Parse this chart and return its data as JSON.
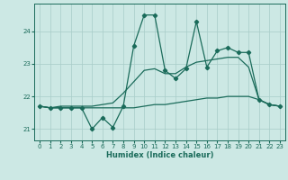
{
  "title": "",
  "xlabel": "Humidex (Indice chaleur)",
  "bg_color": "#cce8e4",
  "grid_color": "#a8ccc8",
  "line_color": "#1a6b5a",
  "xlim": [
    -0.5,
    23.5
  ],
  "ylim": [
    20.65,
    24.85
  ],
  "yticks": [
    21,
    22,
    23,
    24
  ],
  "xticks": [
    0,
    1,
    2,
    3,
    4,
    5,
    6,
    7,
    8,
    9,
    10,
    11,
    12,
    13,
    14,
    15,
    16,
    17,
    18,
    19,
    20,
    21,
    22,
    23
  ],
  "series1_x": [
    0,
    1,
    2,
    3,
    4,
    5,
    6,
    7,
    8,
    9,
    10,
    11,
    12,
    13,
    14,
    15,
    16,
    17,
    18,
    19,
    20,
    21,
    22,
    23
  ],
  "series1_y": [
    21.7,
    21.65,
    21.65,
    21.65,
    21.65,
    21.0,
    21.35,
    21.05,
    21.7,
    23.55,
    24.5,
    24.5,
    22.8,
    22.55,
    22.85,
    24.3,
    22.9,
    23.4,
    23.5,
    23.35,
    23.35,
    21.9,
    21.75,
    21.7
  ],
  "series2_x": [
    0,
    1,
    2,
    3,
    4,
    5,
    6,
    7,
    8,
    9,
    10,
    11,
    12,
    13,
    14,
    15,
    16,
    17,
    18,
    19,
    20,
    21,
    22,
    23
  ],
  "series2_y": [
    21.7,
    21.65,
    21.65,
    21.65,
    21.65,
    21.65,
    21.65,
    21.65,
    21.65,
    21.65,
    21.7,
    21.75,
    21.75,
    21.8,
    21.85,
    21.9,
    21.95,
    21.95,
    22.0,
    22.0,
    22.0,
    21.9,
    21.75,
    21.7
  ],
  "series3_x": [
    0,
    1,
    2,
    3,
    4,
    5,
    6,
    7,
    8,
    9,
    10,
    11,
    12,
    13,
    14,
    15,
    16,
    17,
    18,
    19,
    20,
    21,
    22,
    23
  ],
  "series3_y": [
    21.7,
    21.65,
    21.7,
    21.7,
    21.7,
    21.7,
    21.75,
    21.8,
    22.1,
    22.45,
    22.8,
    22.85,
    22.7,
    22.7,
    22.9,
    23.05,
    23.1,
    23.15,
    23.2,
    23.2,
    22.9,
    21.9,
    21.75,
    21.7
  ]
}
